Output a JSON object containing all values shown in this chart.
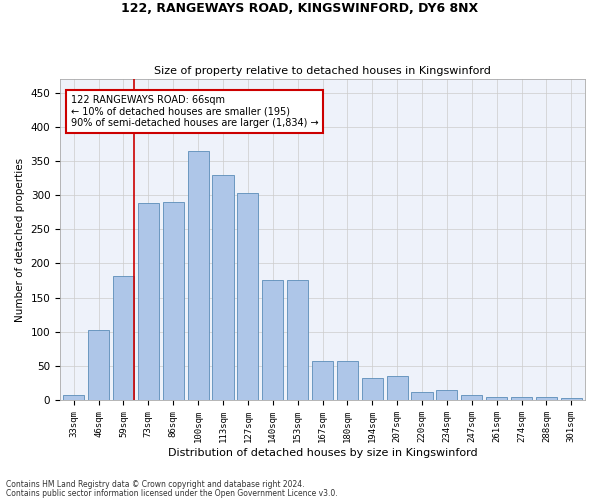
{
  "title1": "122, RANGEWAYS ROAD, KINGSWINFORD, DY6 8NX",
  "title2": "Size of property relative to detached houses in Kingswinford",
  "xlabel": "Distribution of detached houses by size in Kingswinford",
  "ylabel": "Number of detached properties",
  "categories": [
    "33sqm",
    "46sqm",
    "59sqm",
    "73sqm",
    "86sqm",
    "100sqm",
    "113sqm",
    "127sqm",
    "140sqm",
    "153sqm",
    "167sqm",
    "180sqm",
    "194sqm",
    "207sqm",
    "220sqm",
    "234sqm",
    "247sqm",
    "261sqm",
    "274sqm",
    "288sqm",
    "301sqm"
  ],
  "values": [
    8,
    103,
    182,
    288,
    290,
    365,
    330,
    303,
    175,
    175,
    57,
    57,
    32,
    35,
    12,
    15,
    8,
    5,
    5,
    5,
    3
  ],
  "bar_color": "#aec6e8",
  "bar_edge_color": "#5b8db8",
  "vline_color": "#cc0000",
  "annotation_text": "122 RANGEWAYS ROAD: 66sqm\n← 10% of detached houses are smaller (195)\n90% of semi-detached houses are larger (1,834) →",
  "annotation_box_color": "#ffffff",
  "annotation_box_edge": "#cc0000",
  "footnote1": "Contains HM Land Registry data © Crown copyright and database right 2024.",
  "footnote2": "Contains public sector information licensed under the Open Government Licence v3.0.",
  "ylim": [
    0,
    470
  ],
  "yticks": [
    0,
    50,
    100,
    150,
    200,
    250,
    300,
    350,
    400,
    450
  ],
  "grid_color": "#cccccc",
  "bg_color": "#eef2fa"
}
